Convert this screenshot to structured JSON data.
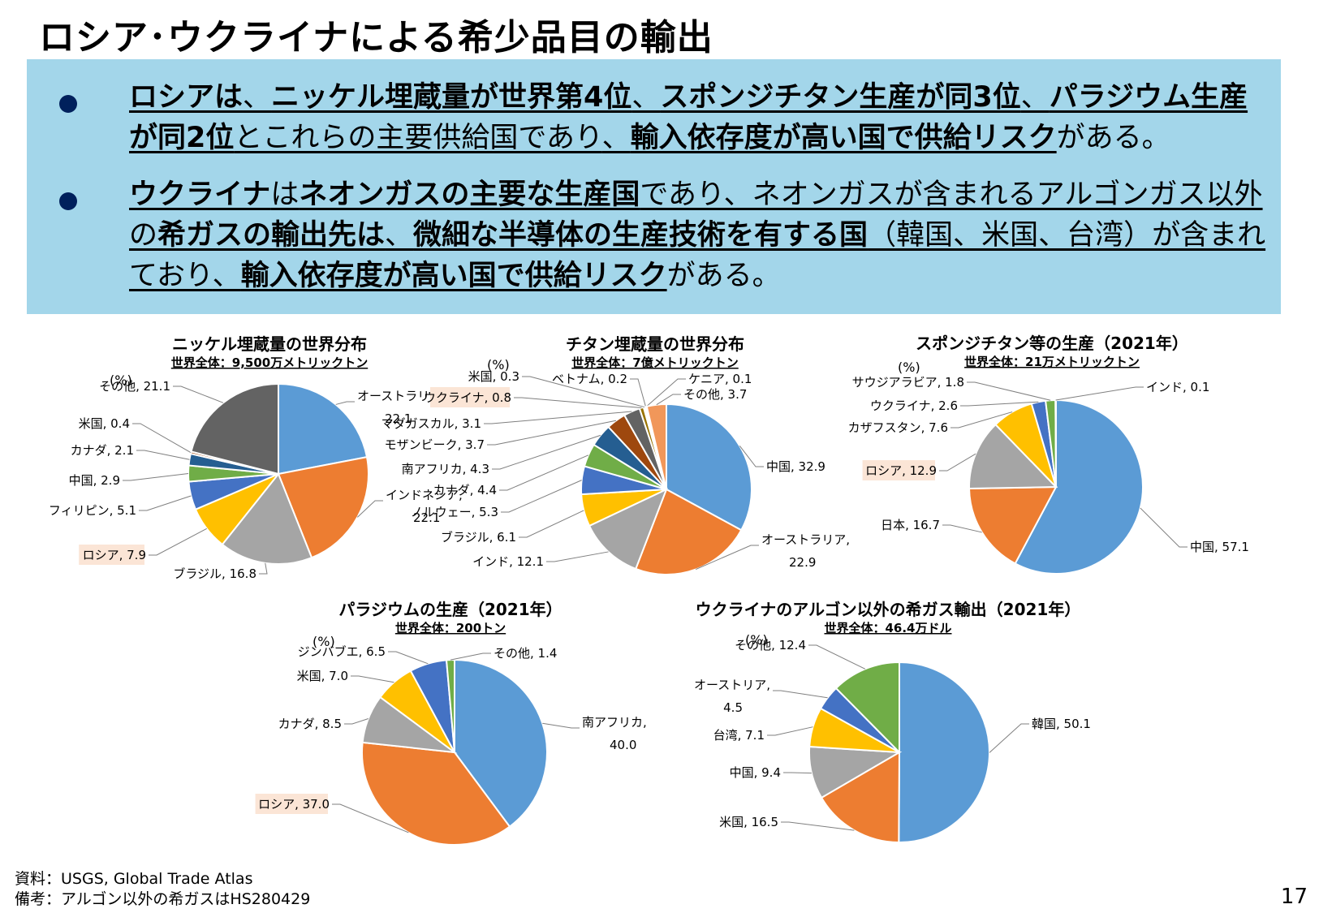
{
  "page": {
    "title": "ロシア･ウクライナによる希少品目の輸出",
    "page_number": "17",
    "source": "資料：USGS, Global Trade Atlas",
    "note": "備考：アルゴン以外の希ガスはHS280429"
  },
  "summary": {
    "bullet1": [
      {
        "t": "ロシアは",
        "b": true,
        "u": true
      },
      {
        "t": "、",
        "b": false,
        "u": true
      },
      {
        "t": "ニッケル埋蔵量が世界第4位",
        "b": true,
        "u": true
      },
      {
        "t": "、",
        "b": false,
        "u": true
      },
      {
        "t": "スポンジチタン生産が同3位",
        "b": true,
        "u": true
      },
      {
        "t": "、",
        "b": false,
        "u": true
      },
      {
        "t": "パラジウム生産が同2位",
        "b": true,
        "u": true
      },
      {
        "t": "とこれらの主要供給国であり",
        "b": false,
        "u": true
      },
      {
        "t": "、",
        "b": false,
        "u": true
      },
      {
        "t": "輸入依存度が高い国で供給リスク",
        "b": true,
        "u": true
      },
      {
        "t": "がある。",
        "b": false,
        "u": false
      }
    ],
    "bullet2": [
      {
        "t": "ウクライナ",
        "b": true,
        "u": true
      },
      {
        "t": "は",
        "b": false,
        "u": true
      },
      {
        "t": "ネオンガスの主要な生産国",
        "b": true,
        "u": true
      },
      {
        "t": "であり、ネオンガスが含まれるアルゴンガス以外の",
        "b": false,
        "u": true
      },
      {
        "t": "希ガスの輸出先は",
        "b": true,
        "u": true
      },
      {
        "t": "、",
        "b": false,
        "u": true
      },
      {
        "t": "微細な半導体の生産技術を有する国",
        "b": true,
        "u": true
      },
      {
        "t": "（韓国、米国、台湾）が含まれており",
        "b": false,
        "u": true
      },
      {
        "t": "、",
        "b": false,
        "u": true
      },
      {
        "t": "輸入依存度が高い国で供給リスク",
        "b": true,
        "u": true
      },
      {
        "t": "がある。",
        "b": false,
        "u": false
      }
    ]
  },
  "highlight_color": "#fbe5d6",
  "chart_data": [
    {
      "type": "pie",
      "title": "ニッケル埋蔵量の世界分布",
      "subtitle": "世界全体：9,500万メトリックトン",
      "unit": "(%)",
      "slices": [
        {
          "label": "オーストラリア",
          "value": 22.1,
          "color": "#5b9bd5"
        },
        {
          "label": "インドネシア",
          "value": 22.1,
          "color": "#ed7d31"
        },
        {
          "label": "ブラジル",
          "value": 16.8,
          "color": "#a5a5a5"
        },
        {
          "label": "ロシア",
          "value": 7.9,
          "color": "#ffc000",
          "highlight": true
        },
        {
          "label": "フィリピン",
          "value": 5.1,
          "color": "#4472c4"
        },
        {
          "label": "中国",
          "value": 2.9,
          "color": "#70ad47"
        },
        {
          "label": "カナダ",
          "value": 2.1,
          "color": "#255e91"
        },
        {
          "label": "米国",
          "value": 0.4,
          "color": "#9e480e"
        },
        {
          "label": "その他",
          "value": 21.1,
          "color": "#636363"
        }
      ]
    },
    {
      "type": "pie",
      "title": "チタン埋蔵量の世界分布",
      "subtitle": "世界全体：7億メトリックトン",
      "unit": "(%)",
      "slices": [
        {
          "label": "中国",
          "value": 32.9,
          "color": "#5b9bd5"
        },
        {
          "label": "オーストラリア",
          "value": 22.9,
          "color": "#ed7d31"
        },
        {
          "label": "インド",
          "value": 12.1,
          "color": "#a5a5a5"
        },
        {
          "label": "ブラジル",
          "value": 6.1,
          "color": "#ffc000"
        },
        {
          "label": "ノルウェー",
          "value": 5.3,
          "color": "#4472c4"
        },
        {
          "label": "カナダ",
          "value": 4.4,
          "color": "#70ad47"
        },
        {
          "label": "南アフリカ",
          "value": 4.3,
          "color": "#255e91"
        },
        {
          "label": "モザンビーク",
          "value": 3.7,
          "color": "#9e480e"
        },
        {
          "label": "マダガスカル",
          "value": 3.1,
          "color": "#636363"
        },
        {
          "label": "ウクライナ",
          "value": 0.8,
          "color": "#997300",
          "highlight": true
        },
        {
          "label": "米国",
          "value": 0.3,
          "color": "#264478"
        },
        {
          "label": "ベトナム",
          "value": 0.2,
          "color": "#43682b"
        },
        {
          "label": "ケニア",
          "value": 0.1,
          "color": "#7cafdd"
        },
        {
          "label": "その他",
          "value": 3.7,
          "color": "#f1975a"
        }
      ]
    },
    {
      "type": "pie",
      "title": "スポンジチタン等の生産（2021年）",
      "subtitle": "世界全体：21万メトリックトン",
      "unit": "(%)",
      "slices": [
        {
          "label": "中国",
          "value": 57.1,
          "color": "#5b9bd5"
        },
        {
          "label": "日本",
          "value": 16.7,
          "color": "#ed7d31"
        },
        {
          "label": "ロシア",
          "value": 12.9,
          "color": "#a5a5a5",
          "highlight": true
        },
        {
          "label": "カザフスタン",
          "value": 7.6,
          "color": "#ffc000"
        },
        {
          "label": "ウクライナ",
          "value": 2.6,
          "color": "#4472c4"
        },
        {
          "label": "サウジアラビア",
          "value": 1.8,
          "color": "#70ad47"
        },
        {
          "label": "インド",
          "value": 0.1,
          "color": "#255e91"
        }
      ]
    },
    {
      "type": "pie",
      "title": "パラジウムの生産（2021年）",
      "subtitle": "世界全体：200トン",
      "unit": "(%)",
      "slices": [
        {
          "label": "南アフリカ",
          "value": 40.0,
          "color": "#5b9bd5"
        },
        {
          "label": "ロシア",
          "value": 37.0,
          "color": "#ed7d31",
          "highlight": true
        },
        {
          "label": "カナダ",
          "value": 8.5,
          "color": "#a5a5a5"
        },
        {
          "label": "米国",
          "value": 7.0,
          "color": "#ffc000"
        },
        {
          "label": "ジンバブエ",
          "value": 6.5,
          "color": "#4472c4"
        },
        {
          "label": "その他",
          "value": 1.4,
          "color": "#70ad47"
        }
      ]
    },
    {
      "type": "pie",
      "title": "ウクライナのアルゴン以外の希ガス輸出（2021年）",
      "subtitle": "世界全体：46.4万ドル",
      "unit": "(%)",
      "slices": [
        {
          "label": "韓国",
          "value": 50.1,
          "color": "#5b9bd5"
        },
        {
          "label": "米国",
          "value": 16.5,
          "color": "#ed7d31"
        },
        {
          "label": "中国",
          "value": 9.4,
          "color": "#a5a5a5"
        },
        {
          "label": "台湾",
          "value": 7.1,
          "color": "#ffc000"
        },
        {
          "label": "オーストリア",
          "value": 4.5,
          "color": "#4472c4"
        },
        {
          "label": "その他",
          "value": 12.4,
          "color": "#70ad47"
        }
      ]
    }
  ]
}
